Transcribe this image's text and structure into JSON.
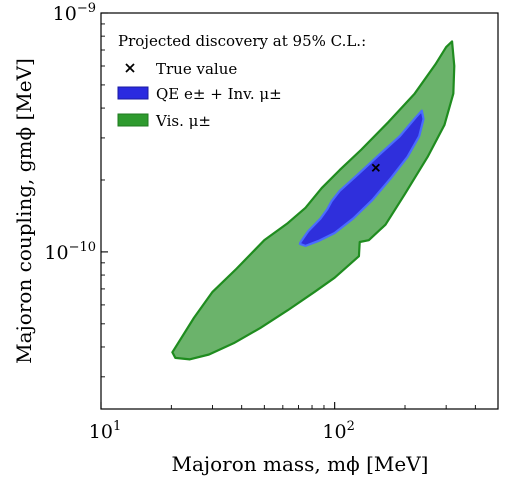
{
  "chart_data": {
    "type": "area",
    "title": "",
    "xlabel": "Majoron mass, mϕ [MeV]",
    "ylabel": "Majoron coupling, gmϕ [MeV]",
    "x_scale": "log",
    "y_scale": "log",
    "xlim": [
      10,
      500
    ],
    "ylim": [
      2.2e-11,
      1e-09
    ],
    "x_ticks": [
      {
        "value": 10,
        "base": "10",
        "exp": "1"
      },
      {
        "value": 100,
        "base": "10",
        "exp": "2"
      }
    ],
    "y_ticks": [
      {
        "value": 1e-10,
        "base": "10",
        "exp": "−10"
      },
      {
        "value": 1e-09,
        "base": "10",
        "exp": "−9"
      }
    ],
    "legend": {
      "title": "Projected discovery at 95% C.L.:",
      "placement": "top-left",
      "entries": [
        {
          "label": "True value",
          "marker": "x"
        },
        {
          "label": "QE e± + Inv. μ±",
          "color": "#2a2ae0"
        },
        {
          "label": "Vis. μ±",
          "color": "#2e9a2e"
        }
      ]
    },
    "true_value": {
      "x": 150,
      "y": 2.25e-10
    },
    "series": [
      {
        "name": "Vis. μ±",
        "fill": "#6bb36b",
        "stroke": "#1f8c1f",
        "polygon": [
          [
            20.2,
            3.8e-11
          ],
          [
            25,
            5.3e-11
          ],
          [
            30,
            6.8e-11
          ],
          [
            38,
            8.5e-11
          ],
          [
            50,
            1.12e-10
          ],
          [
            63,
            1.32e-10
          ],
          [
            75,
            1.53e-10
          ],
          [
            88,
            1.85e-10
          ],
          [
            105,
            2.2e-10
          ],
          [
            130,
            2.68e-10
          ],
          [
            170,
            3.5e-10
          ],
          [
            220,
            4.6e-10
          ],
          [
            270,
            6.1e-10
          ],
          [
            300,
            7.2e-10
          ],
          [
            318,
            7.6e-10
          ],
          [
            325,
            6e-10
          ],
          [
            322,
            4.6e-10
          ],
          [
            295,
            3.4e-10
          ],
          [
            250,
            2.5e-10
          ],
          [
            200,
            1.75e-10
          ],
          [
            165,
            1.3e-10
          ],
          [
            140,
            1.12e-10
          ],
          [
            128,
            1.1e-10
          ],
          [
            127,
            9.6e-11
          ],
          [
            100,
            7.8e-11
          ],
          [
            82,
            6.8e-11
          ],
          [
            63,
            5.7e-11
          ],
          [
            48,
            4.8e-11
          ],
          [
            37,
            4.15e-11
          ],
          [
            29,
            3.72e-11
          ],
          [
            24,
            3.55e-11
          ],
          [
            20.8,
            3.6e-11
          ]
        ]
      },
      {
        "name": "QE e± + Inv. μ±",
        "fill": "#2f2fdc",
        "stroke": "#4a6cff",
        "polygon": [
          [
            71.5,
            1.1e-10
          ],
          [
            77,
            1.22e-10
          ],
          [
            87,
            1.38e-10
          ],
          [
            93,
            1.51e-10
          ],
          [
            97,
            1.63e-10
          ],
          [
            105,
            1.8e-10
          ],
          [
            125,
            2.1e-10
          ],
          [
            155,
            2.55e-10
          ],
          [
            190,
            3.05e-10
          ],
          [
            222,
            3.65e-10
          ],
          [
            236,
            3.9e-10
          ],
          [
            240,
            3.6e-10
          ],
          [
            230,
            3.05e-10
          ],
          [
            205,
            2.5e-10
          ],
          [
            175,
            2.05e-10
          ],
          [
            145,
            1.65e-10
          ],
          [
            120,
            1.38e-10
          ],
          [
            100,
            1.2e-10
          ],
          [
            85,
            1.11e-10
          ],
          [
            75,
            1.06e-10
          ],
          [
            71,
            1.08e-10
          ]
        ]
      }
    ]
  }
}
